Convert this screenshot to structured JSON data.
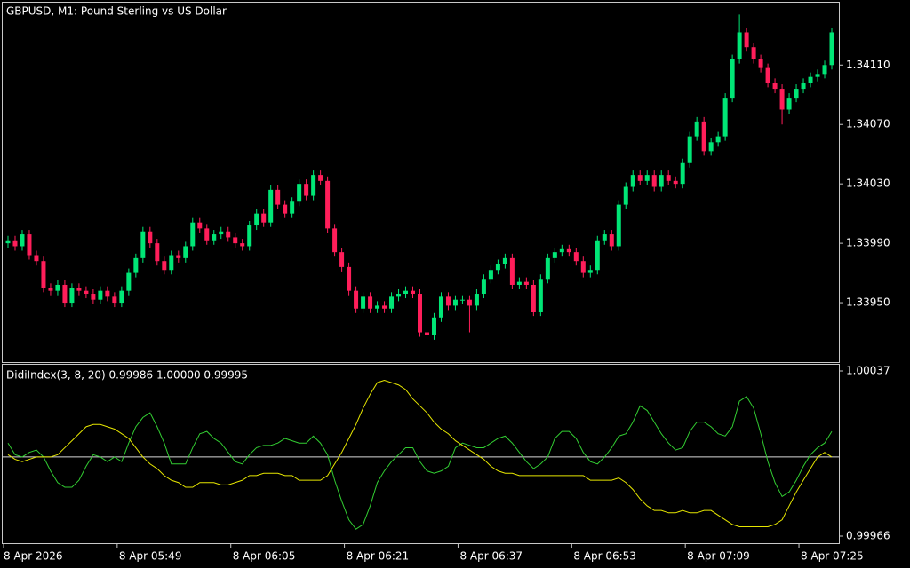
{
  "chart_data": [
    {
      "type": "candlestick",
      "title": "GBPUSD, M1:  Pound Sterling vs US Dollar",
      "bull_color": "#00e676",
      "bear_color": "#ff1e5a",
      "xlim": [
        -0.75,
        117
      ],
      "ylim": [
        1.3391,
        1.34152
      ],
      "yticks": [
        {
          "value": 1.3411,
          "label": "1.34110"
        },
        {
          "value": 1.3407,
          "label": "1.34070"
        },
        {
          "value": 1.3403,
          "label": "1.34030"
        },
        {
          "value": 1.3399,
          "label": "1.33990"
        },
        {
          "value": 1.3395,
          "label": "1.33950"
        }
      ],
      "open": [
        1.3399,
        1.33992,
        1.33988,
        1.33996,
        1.33982,
        1.33978,
        1.3396,
        1.33958,
        1.33962,
        1.3395,
        1.3396,
        1.33958,
        1.33956,
        1.33952,
        1.33958,
        1.33954,
        1.3395,
        1.33958,
        1.3397,
        1.3398,
        1.33998,
        1.3399,
        1.33978,
        1.33972,
        1.33982,
        1.3398,
        1.33988,
        1.34004,
        1.34,
        1.33992,
        1.33996,
        1.33998,
        1.33994,
        1.3399,
        1.33988,
        1.34002,
        1.3401,
        1.34004,
        1.34026,
        1.34016,
        1.3401,
        1.34018,
        1.3403,
        1.34022,
        1.34036,
        1.34032,
        1.34,
        1.33984,
        1.33974,
        1.33958,
        1.33946,
        1.33954,
        1.33946,
        1.33948,
        1.33946,
        1.33954,
        1.33956,
        1.33958,
        1.33956,
        1.3393,
        1.33928,
        1.3394,
        1.33954,
        1.33948,
        1.33952,
        1.33952,
        1.33948,
        1.33956,
        1.33966,
        1.33972,
        1.33976,
        1.3398,
        1.33962,
        1.33964,
        1.33962,
        1.33944,
        1.33966,
        1.3398,
        1.33984,
        1.33986,
        1.33984,
        1.33978,
        1.3397,
        1.33972,
        1.33992,
        1.33996,
        1.33988,
        1.34016,
        1.34028,
        1.34036,
        1.34032,
        1.34036,
        1.34028,
        1.34036,
        1.34032,
        1.3403,
        1.34044,
        1.34062,
        1.34072,
        1.34052,
        1.34058,
        1.34062,
        1.34088,
        1.34114,
        1.34132,
        1.34122,
        1.34114,
        1.34108,
        1.34098,
        1.34094,
        1.3408,
        1.34088,
        1.34094,
        1.34098,
        1.34102,
        1.34104,
        1.3411
      ],
      "high": [
        1.33995,
        1.33995,
        1.33999,
        1.33999,
        1.33985,
        1.33981,
        1.33963,
        1.33965,
        1.33965,
        1.33963,
        1.33963,
        1.33961,
        1.33959,
        1.33961,
        1.33961,
        1.33957,
        1.33961,
        1.33973,
        1.33983,
        1.34001,
        1.34001,
        1.33993,
        1.33981,
        1.33985,
        1.33985,
        1.33991,
        1.34007,
        1.34007,
        1.34003,
        1.33999,
        1.34001,
        1.34001,
        1.33997,
        1.33993,
        1.34005,
        1.34013,
        1.34013,
        1.34029,
        1.34029,
        1.34019,
        1.34021,
        1.34033,
        1.34033,
        1.34039,
        1.34039,
        1.34035,
        1.34003,
        1.33987,
        1.33977,
        1.33961,
        1.33957,
        1.33957,
        1.33951,
        1.33951,
        1.33957,
        1.33959,
        1.33961,
        1.33961,
        1.33959,
        1.33933,
        1.33943,
        1.33957,
        1.33957,
        1.33955,
        1.33955,
        1.33955,
        1.33959,
        1.33969,
        1.33975,
        1.33979,
        1.33983,
        1.33983,
        1.33967,
        1.33967,
        1.33965,
        1.33969,
        1.33983,
        1.33987,
        1.33989,
        1.33989,
        1.33987,
        1.33981,
        1.33975,
        1.33995,
        1.33999,
        1.33999,
        1.34019,
        1.34031,
        1.34039,
        1.34039,
        1.34039,
        1.34039,
        1.34039,
        1.34039,
        1.34035,
        1.34047,
        1.34065,
        1.34075,
        1.34075,
        1.34061,
        1.34065,
        1.34091,
        1.34117,
        1.34144,
        1.34135,
        1.34125,
        1.34117,
        1.34111,
        1.34101,
        1.34097,
        1.34091,
        1.34097,
        1.34101,
        1.34105,
        1.34107,
        1.34113,
        1.34135
      ],
      "low": [
        1.33987,
        1.33985,
        1.33985,
        1.33979,
        1.33975,
        1.33957,
        1.33955,
        1.33955,
        1.33947,
        1.33947,
        1.33955,
        1.33953,
        1.33949,
        1.33949,
        1.33951,
        1.33947,
        1.33947,
        1.33955,
        1.33967,
        1.33977,
        1.33987,
        1.33975,
        1.33969,
        1.33969,
        1.33977,
        1.33977,
        1.33985,
        1.33997,
        1.33989,
        1.33989,
        1.33993,
        1.33991,
        1.33987,
        1.33985,
        1.33985,
        1.33999,
        1.34001,
        1.34001,
        1.34013,
        1.34007,
        1.34007,
        1.34015,
        1.34019,
        1.34019,
        1.34029,
        1.33997,
        1.33981,
        1.33971,
        1.33955,
        1.33943,
        1.33943,
        1.33943,
        1.33943,
        1.33943,
        1.33943,
        1.33951,
        1.33953,
        1.33953,
        1.33927,
        1.33925,
        1.33925,
        1.33937,
        1.33945,
        1.33945,
        1.33949,
        1.3393,
        1.33945,
        1.33953,
        1.33963,
        1.33969,
        1.33973,
        1.33959,
        1.33959,
        1.33959,
        1.33941,
        1.33941,
        1.33963,
        1.33977,
        1.33981,
        1.33981,
        1.33975,
        1.33967,
        1.33967,
        1.33969,
        1.33989,
        1.33985,
        1.33985,
        1.34013,
        1.34025,
        1.34029,
        1.34029,
        1.34025,
        1.34025,
        1.34029,
        1.34027,
        1.34027,
        1.34041,
        1.34059,
        1.34049,
        1.34049,
        1.34055,
        1.34059,
        1.34085,
        1.34111,
        1.34119,
        1.34111,
        1.34105,
        1.34095,
        1.34091,
        1.3407,
        1.34077,
        1.34085,
        1.34091,
        1.34095,
        1.34099,
        1.34101,
        1.34107
      ],
      "close": [
        1.33992,
        1.33988,
        1.33996,
        1.33982,
        1.33978,
        1.3396,
        1.33958,
        1.33962,
        1.3395,
        1.3396,
        1.33958,
        1.33956,
        1.33952,
        1.33958,
        1.33954,
        1.3395,
        1.33958,
        1.3397,
        1.3398,
        1.33998,
        1.3399,
        1.33978,
        1.33972,
        1.33982,
        1.3398,
        1.33988,
        1.34004,
        1.34,
        1.33992,
        1.33996,
        1.33998,
        1.33994,
        1.3399,
        1.33988,
        1.34002,
        1.3401,
        1.34004,
        1.34026,
        1.34016,
        1.3401,
        1.34018,
        1.3403,
        1.34022,
        1.34036,
        1.34032,
        1.34,
        1.33984,
        1.33974,
        1.33958,
        1.33946,
        1.33954,
        1.33946,
        1.33948,
        1.33946,
        1.33954,
        1.33956,
        1.33958,
        1.33956,
        1.3393,
        1.33928,
        1.3394,
        1.33954,
        1.33948,
        1.33952,
        1.33952,
        1.33948,
        1.33956,
        1.33966,
        1.33972,
        1.33976,
        1.3398,
        1.33962,
        1.33964,
        1.33962,
        1.33944,
        1.33966,
        1.3398,
        1.33984,
        1.33986,
        1.33984,
        1.33978,
        1.3397,
        1.33972,
        1.33992,
        1.33996,
        1.33988,
        1.34016,
        1.34028,
        1.34036,
        1.34032,
        1.34036,
        1.34028,
        1.34036,
        1.34032,
        1.3403,
        1.34044,
        1.34062,
        1.34072,
        1.34052,
        1.34058,
        1.34062,
        1.34088,
        1.34114,
        1.34132,
        1.34122,
        1.34114,
        1.34108,
        1.34098,
        1.34094,
        1.3408,
        1.34088,
        1.34094,
        1.34098,
        1.34102,
        1.34104,
        1.3411,
        1.34132
      ]
    },
    {
      "type": "line",
      "title": "DidiIndex(3, 8, 20) 0.99986 1.00000 0.99995",
      "xlim": [
        -0.75,
        117
      ],
      "ylim": [
        0.99966,
        1.00037
      ],
      "yticks": [
        1.00037,
        0.99966
      ],
      "level": 1,
      "level_color": "#d8d8d8",
      "xticks": [
        {
          "value": 0,
          "label": "8 Apr 2026"
        },
        {
          "value": 16,
          "label": "8 Apr 05:49"
        },
        {
          "value": 32,
          "label": "8 Apr 06:05"
        },
        {
          "value": 48,
          "label": "8 Apr 06:21"
        },
        {
          "value": 64,
          "label": "8 Apr 06:37"
        },
        {
          "value": 80,
          "label": "8 Apr 06:53"
        },
        {
          "value": 96,
          "label": "8 Apr 07:09"
        },
        {
          "value": 112,
          "label": "8 Apr 07:25"
        }
      ],
      "series": [
        {
          "color": "#32cd32",
          "values": [
            1.00006,
            1.00001,
            1,
            1.00002,
            1.00003,
            1,
            0.99994,
            0.99989,
            0.99987,
            0.99987,
            0.9999,
            0.99996,
            1.00001,
            1,
            0.99998,
            1,
            0.99998,
            1.00006,
            1.00013,
            1.00017,
            1.00019,
            1.00013,
            1.00006,
            0.99997,
            0.99997,
            0.99997,
            1.00004,
            1.0001,
            1.00011,
            1.00008,
            1.00006,
            1.00002,
            0.99998,
            0.99997,
            1.00001,
            1.00004,
            1.00005,
            1.00005,
            1.00006,
            1.00008,
            1.00007,
            1.00006,
            1.00006,
            1.00009,
            1.00006,
            1.00001,
            0.9999,
            0.99981,
            0.99973,
            0.99969,
            0.99971,
            0.99979,
            0.99989,
            0.99994,
            0.99998,
            1.00001,
            1.00004,
            1.00004,
            0.99998,
            0.99994,
            0.99993,
            0.99994,
            0.99996,
            1.00004,
            1.00006,
            1.00005,
            1.00004,
            1.00004,
            1.00006,
            1.00008,
            1.00009,
            1.00006,
            1.00002,
            0.99998,
            0.99995,
            0.99997,
            1,
            1.00008,
            1.00011,
            1.00011,
            1.00008,
            1.00002,
            0.99998,
            0.99997,
            1,
            1.00004,
            1.00009,
            1.0001,
            1.00015,
            1.00022,
            1.0002,
            1.00015,
            1.0001,
            1.00006,
            1.00003,
            1.00004,
            1.00011,
            1.00015,
            1.00015,
            1.00013,
            1.0001,
            1.00009,
            1.00013,
            1.00024,
            1.00026,
            1.00021,
            1.0001,
            0.99998,
            0.99989,
            0.99983,
            0.99985,
            0.9999,
            0.99996,
            1.00001,
            1.00004,
            1.00006,
            1.00011
          ]
        },
        {
          "color": "#e6e600",
          "values": [
            1.00001,
            0.99999,
            0.99998,
            0.99999,
            1,
            1,
            1,
            1.00001,
            1.00004,
            1.00007,
            1.0001,
            1.00013,
            1.00014,
            1.00014,
            1.00013,
            1.00012,
            1.0001,
            1.00008,
            1.00004,
            1,
            0.99997,
            0.99995,
            0.99992,
            0.9999,
            0.99989,
            0.99987,
            0.99987,
            0.99989,
            0.99989,
            0.99989,
            0.99988,
            0.99988,
            0.99989,
            0.9999,
            0.99992,
            0.99992,
            0.99993,
            0.99993,
            0.99993,
            0.99992,
            0.99992,
            0.9999,
            0.9999,
            0.9999,
            0.9999,
            0.99992,
            0.99997,
            1.00002,
            1.00008,
            1.00014,
            1.00021,
            1.00027,
            1.00032,
            1.00033,
            1.00032,
            1.00031,
            1.00029,
            1.00025,
            1.00022,
            1.00019,
            1.00015,
            1.00012,
            1.0001,
            1.00007,
            1.00005,
            1.00003,
            1.00001,
            0.99999,
            0.99996,
            0.99994,
            0.99993,
            0.99993,
            0.99992,
            0.99992,
            0.99992,
            0.99992,
            0.99992,
            0.99992,
            0.99992,
            0.99992,
            0.99992,
            0.99992,
            0.9999,
            0.9999,
            0.9999,
            0.9999,
            0.99991,
            0.99989,
            0.99986,
            0.99982,
            0.99979,
            0.99977,
            0.99977,
            0.99976,
            0.99976,
            0.99977,
            0.99976,
            0.99976,
            0.99977,
            0.99977,
            0.99975,
            0.99973,
            0.99971,
            0.9997,
            0.9997,
            0.9997,
            0.9997,
            0.9997,
            0.99971,
            0.99973,
            0.99979,
            0.99985,
            0.9999,
            0.99995,
            1,
            1.00002,
            1
          ]
        }
      ]
    }
  ]
}
